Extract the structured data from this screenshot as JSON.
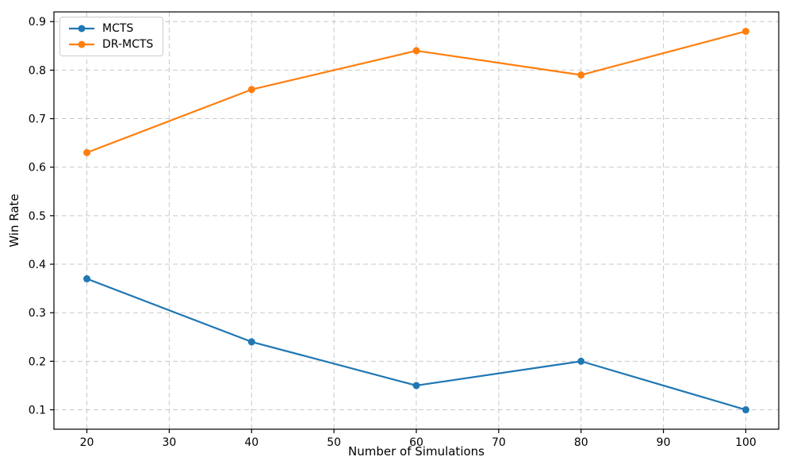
{
  "chart_data": {
    "type": "line",
    "title": "",
    "xlabel": "Number of Simulations",
    "ylabel": "Win Rate",
    "x": [
      20,
      40,
      60,
      80,
      100
    ],
    "series": [
      {
        "name": "MCTS",
        "color": "#1f77b4",
        "values": [
          0.37,
          0.24,
          0.15,
          0.2,
          0.1
        ]
      },
      {
        "name": "DR-MCTS",
        "color": "#ff7f0e",
        "values": [
          0.63,
          0.76,
          0.84,
          0.79,
          0.88
        ]
      }
    ],
    "x_ticks": [
      20,
      30,
      40,
      50,
      60,
      70,
      80,
      90,
      100
    ],
    "y_ticks": [
      0.1,
      0.2,
      0.3,
      0.4,
      0.5,
      0.6,
      0.7,
      0.8,
      0.9
    ],
    "xlim": [
      16,
      104
    ],
    "ylim": [
      0.06,
      0.92
    ],
    "grid": true,
    "grid_style": "dashed",
    "legend_position": "upper-left",
    "marker": "circle",
    "colors": {
      "grid": "#c9c9c9",
      "spine": "#000000",
      "tick_label": "#000000",
      "background": "#ffffff"
    }
  }
}
